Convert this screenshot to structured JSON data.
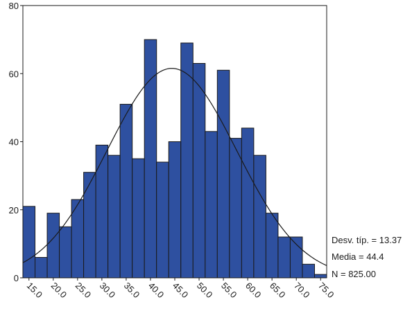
{
  "chart_data": {
    "type": "bar",
    "title": "",
    "xlabel": "",
    "ylabel": "",
    "bin_width": 2.5,
    "bin_centers": [
      15.0,
      17.5,
      20.0,
      22.5,
      25.0,
      27.5,
      30.0,
      32.5,
      35.0,
      37.5,
      40.0,
      42.5,
      45.0,
      47.5,
      50.0,
      52.5,
      55.0,
      57.5,
      60.0,
      62.5,
      65.0,
      67.5,
      70.0,
      72.5,
      75.0
    ],
    "values": [
      21,
      6,
      19,
      15,
      23,
      31,
      39,
      36,
      51,
      35,
      70,
      34,
      40,
      69,
      63,
      43,
      61,
      41,
      44,
      36,
      19,
      12,
      12,
      4,
      1
    ],
    "x_tick_labels": [
      "15.0",
      "20.0",
      "25.0",
      "30.0",
      "35.0",
      "40.0",
      "45.0",
      "50.0",
      "55.0",
      "60.0",
      "65.0",
      "70.0",
      "75.0"
    ],
    "x_tick_values": [
      15,
      20,
      25,
      30,
      35,
      40,
      45,
      50,
      55,
      60,
      65,
      70,
      75
    ],
    "y_tick_labels": [
      "0",
      "20",
      "40",
      "60",
      "80"
    ],
    "y_tick_values": [
      0,
      20,
      40,
      60,
      80
    ],
    "ylim": [
      0,
      80
    ],
    "xlim": [
      13.75,
      76.25
    ],
    "grid": false,
    "normal_curve": {
      "mean": 44.4,
      "sd": 13.37,
      "n": 825
    },
    "bar_color": "#2e50a0",
    "bar_edge_color": "#1a1a1a",
    "curve_color": "#1a1a1a"
  },
  "stats": {
    "sd_label": "Desv. típ. = 13.37",
    "mean_label": "Media = 44.4",
    "n_label": "N = 825.00"
  }
}
